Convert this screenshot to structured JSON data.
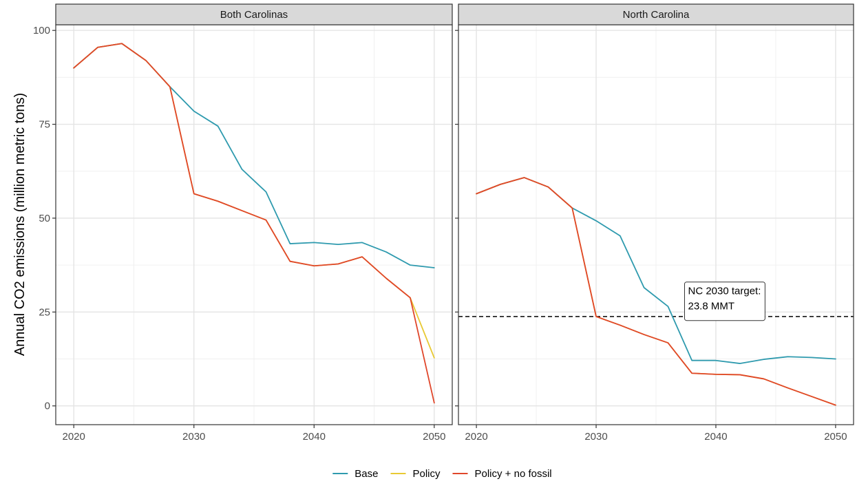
{
  "chart_data": {
    "type": "line",
    "ylabel": "Annual CO2 emissions (million metric tons)",
    "xlabel": "",
    "xlim": [
      2018.5,
      2051.5
    ],
    "ylim": [
      -5,
      101.5
    ],
    "x_ticks": [
      2020,
      2030,
      2040,
      2050
    ],
    "y_ticks": [
      0,
      25,
      50,
      75,
      100
    ],
    "grid": true,
    "legend_position": "bottom",
    "colors": {
      "Base": "#2E9AAE",
      "Policy": "#E8C933",
      "Policy + no fossil": "#E0462A"
    },
    "legend": [
      "Base",
      "Policy",
      "Policy + no fossil"
    ],
    "facets": [
      {
        "panel": "Both Carolinas",
        "series": [
          {
            "name": "Base",
            "x": [
              2020,
              2022,
              2024,
              2026,
              2028,
              2030,
              2032,
              2034,
              2036,
              2038,
              2040,
              2042,
              2044,
              2046,
              2048,
              2050
            ],
            "y": [
              90,
              95.5,
              96.5,
              92,
              85,
              78.5,
              74.5,
              63,
              57,
              43.2,
              43.5,
              43,
              43.5,
              41,
              37.5,
              36.8
            ]
          },
          {
            "name": "Policy",
            "x": [
              2020,
              2022,
              2024,
              2026,
              2028,
              2030,
              2032,
              2034,
              2036,
              2038,
              2040,
              2042,
              2044,
              2046,
              2048,
              2050
            ],
            "y": [
              90,
              95.5,
              96.5,
              92,
              85,
              56.5,
              54.5,
              52,
              49.5,
              38.5,
              37.3,
              37.8,
              39.7,
              34,
              28.8,
              12.8
            ]
          },
          {
            "name": "Policy + no fossil",
            "x": [
              2020,
              2022,
              2024,
              2026,
              2028,
              2030,
              2032,
              2034,
              2036,
              2038,
              2040,
              2042,
              2044,
              2046,
              2048,
              2050
            ],
            "y": [
              90,
              95.5,
              96.5,
              92,
              85,
              56.5,
              54.5,
              52,
              49.5,
              38.5,
              37.3,
              37.8,
              39.7,
              34,
              28.8,
              0.8
            ]
          }
        ]
      },
      {
        "panel": "North Carolina",
        "series": [
          {
            "name": "Base",
            "x": [
              2020,
              2022,
              2024,
              2026,
              2028,
              2030,
              2032,
              2034,
              2036,
              2038,
              2040,
              2042,
              2044,
              2046,
              2048,
              2050
            ],
            "y": [
              56.5,
              59,
              60.8,
              58.3,
              52.7,
              49.3,
              45.3,
              31.5,
              26.5,
              12.1,
              12.1,
              11.3,
              12.4,
              13.1,
              12.9,
              12.5
            ]
          },
          {
            "name": "Policy",
            "x": [
              2020,
              2022,
              2024,
              2026,
              2028,
              2030,
              2032,
              2034,
              2036,
              2038,
              2040,
              2042,
              2044,
              2046,
              2048,
              2050
            ],
            "y": [
              56.5,
              59,
              60.8,
              58.3,
              52.7,
              23.8,
              21.5,
              19,
              16.8,
              8.7,
              8.4,
              8.3,
              7.2,
              4.8,
              2.5,
              0.2
            ]
          },
          {
            "name": "Policy + no fossil",
            "x": [
              2020,
              2022,
              2024,
              2026,
              2028,
              2030,
              2032,
              2034,
              2036,
              2038,
              2040,
              2042,
              2044,
              2046,
              2048,
              2050
            ],
            "y": [
              56.5,
              59,
              60.8,
              58.3,
              52.7,
              23.8,
              21.5,
              19,
              16.8,
              8.7,
              8.4,
              8.3,
              7.2,
              4.8,
              2.5,
              0.2
            ]
          }
        ],
        "hline": {
          "y": 23.8,
          "style": "dashed",
          "color": "#000000"
        },
        "annotation": {
          "lines": [
            "NC 2030 target:",
            "23.8 MMT"
          ],
          "x": 2037.5,
          "y": 27.5
        }
      }
    ]
  }
}
